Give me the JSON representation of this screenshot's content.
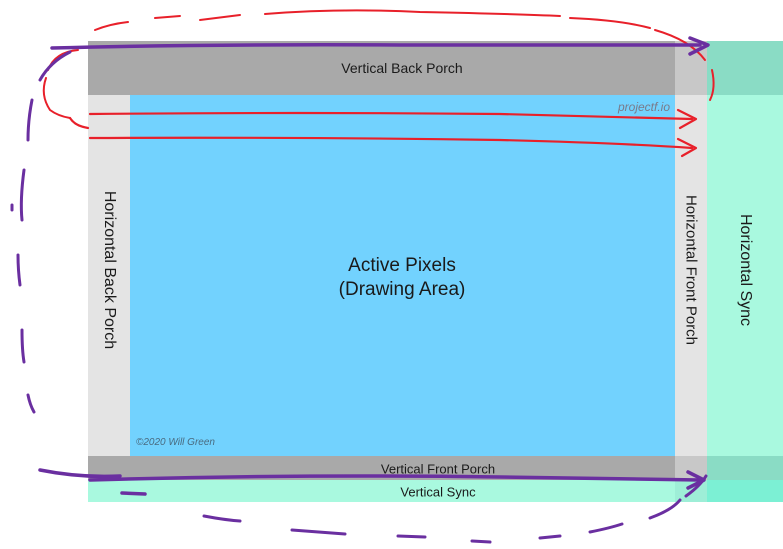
{
  "diagram": {
    "labels": {
      "vertical_back_porch": "Vertical Back Porch",
      "horizontal_back_porch": "Horizontal Back Porch",
      "horizontal_front_porch": "Horizontal Front Porch",
      "horizontal_sync": "Horizontal Sync",
      "active_line1": "Active Pixels",
      "active_line2": "(Drawing Area)",
      "vertical_front_porch": "Vertical Front Porch",
      "vertical_sync": "Vertical Sync",
      "watermark": "projectf.io",
      "copyright": "©2020 Will Green"
    },
    "colors": {
      "active": "#72d2fe",
      "porch_dark": "#a9a9a9",
      "porch_light": "#e4e4e4",
      "hsync": "#a9f9df",
      "hsync_corner": "#8adcc5",
      "vsync": "#a9f9df",
      "vsync_corner": "#7cf0d4",
      "annotation_red": "#e8202a",
      "annotation_purple": "#6a2fa0"
    }
  }
}
